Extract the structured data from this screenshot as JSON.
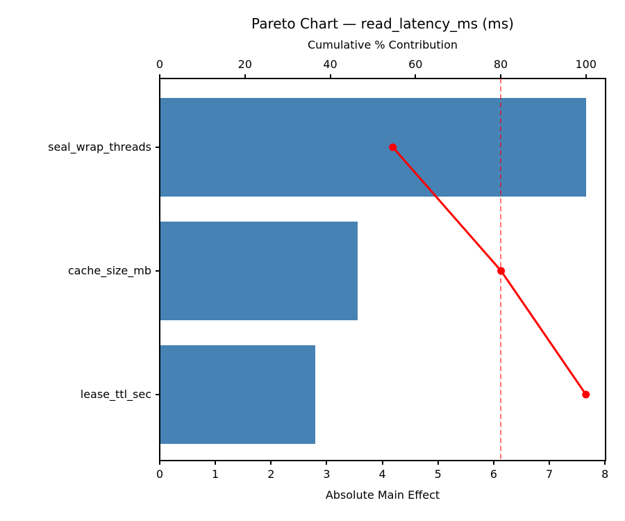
{
  "chart_data": {
    "type": "bar",
    "subtype": "pareto",
    "orientation": "horizontal",
    "title": "Pareto Chart — read_latency_ms (ms)",
    "categories": [
      "seal_wrap_threads",
      "cache_size_mb",
      "lease_ttl_sec"
    ],
    "values": [
      7.66,
      3.56,
      2.79
    ],
    "cumulative_pct": [
      54.7,
      80.1,
      100.0
    ],
    "bottom_axis": {
      "label": "Absolute Main Effect",
      "ticks": [
        0,
        1,
        2,
        3,
        4,
        5,
        6,
        7,
        8
      ],
      "lim": [
        0,
        8.01
      ]
    },
    "top_axis": {
      "label": "Cumulative % Contribution",
      "ticks": [
        0,
        20,
        40,
        60,
        80,
        100
      ],
      "lim": [
        0,
        104.6
      ]
    },
    "reference_line": {
      "axis": "top",
      "value": 80,
      "style": "dashed"
    },
    "grid": false,
    "legend": false,
    "colors": {
      "bar": "#4682b4",
      "cumulative_line": "#ff0000",
      "reference_line": "rgba(255,0,0,0.55)",
      "text": "#000000",
      "background": "#ffffff"
    }
  }
}
